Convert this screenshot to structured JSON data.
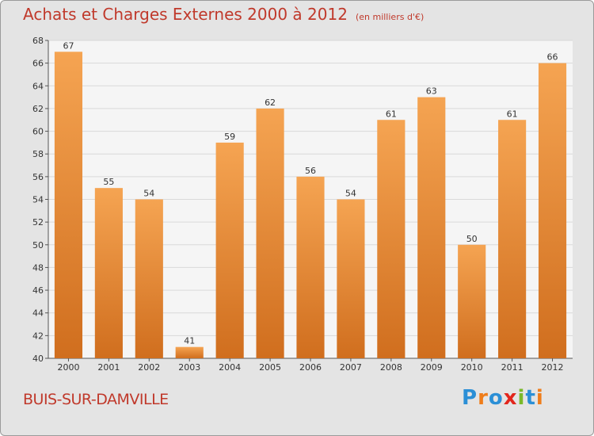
{
  "header": {
    "title": "Achats et Charges Externes 2000 à 2012",
    "unit": "(en milliers d'€)"
  },
  "footer": {
    "place_name": "BUIS-SUR-DAMVILLE",
    "logo": {
      "text": "Proxiti",
      "colors": [
        "#2b8fd6",
        "#ef7d1a",
        "#2b8fd6",
        "#e2261d",
        "#7ab929",
        "#2b8fd6",
        "#ef7d1a"
      ]
    }
  },
  "colors": {
    "bar_top": "#f5a452",
    "bar_bottom": "#d06e1e",
    "title": "#c0392b",
    "background": "#e4e4e4",
    "plot_background": "#f5f5f5",
    "grid": "#d9d9d9"
  },
  "chart_data": {
    "type": "bar",
    "title": "Achats et Charges Externes 2000 à 2012",
    "subtitle": "(en milliers d'€)",
    "categories": [
      "2000",
      "2001",
      "2002",
      "2003",
      "2004",
      "2005",
      "2006",
      "2007",
      "2008",
      "2009",
      "2010",
      "2011",
      "2012"
    ],
    "values": [
      67,
      55,
      54,
      41,
      59,
      62,
      56,
      54,
      61,
      63,
      50,
      61,
      66
    ],
    "ylim": [
      40,
      68
    ],
    "yticks": [
      40,
      42,
      44,
      46,
      48,
      50,
      52,
      54,
      56,
      58,
      60,
      62,
      64,
      66,
      68
    ],
    "grid": true,
    "data_labels": true
  }
}
